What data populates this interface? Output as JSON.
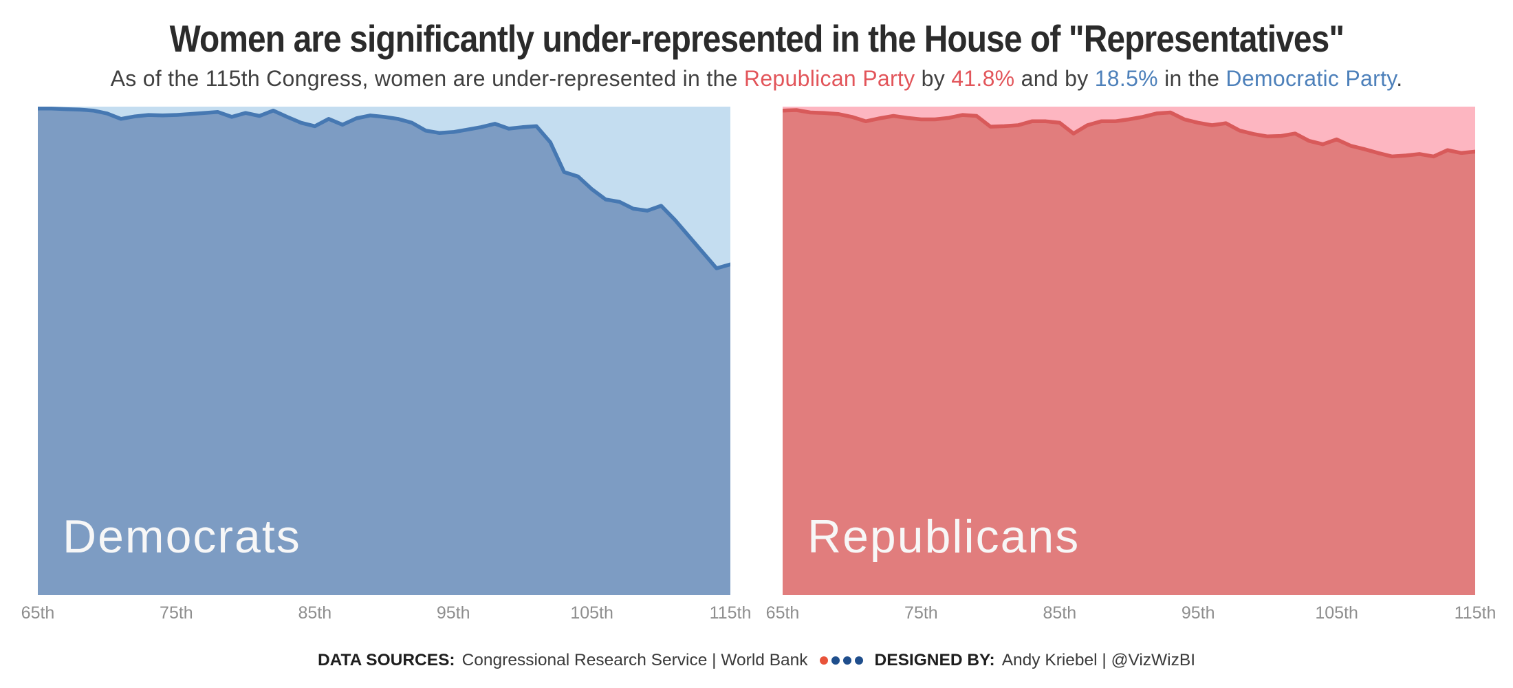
{
  "header": {
    "title": "Women are significantly under-represented in the House of \"Representatives\"",
    "subtitle_parts": {
      "lead": "As of the 115th Congress, women are under-represented in the ",
      "republican_party": "Republican Party",
      "by": " by ",
      "republican_gap_pct": "41.8%",
      "and_by": " and by ",
      "democratic_gap_pct": "18.5%",
      "in_the": " in the ",
      "democratic_party": "Democratic Party",
      "period": "."
    },
    "accent_colors": {
      "republican_red": "#e2555a",
      "democratic_blue": "#4d80ba"
    }
  },
  "chart_data": [
    {
      "type": "area",
      "title": "Democrats",
      "value_meaning": "share of House Democrats who are men (%); light background above the line is the women's share",
      "x_congress_range": [
        65,
        115
      ],
      "x_tick_labels": [
        "65th",
        "75th",
        "85th",
        "95th",
        "105th",
        "115th"
      ],
      "ylim": [
        0,
        100
      ],
      "grid": false,
      "legend": "none",
      "values": [
        99.6,
        99.6,
        99.5,
        99.4,
        99.2,
        98.6,
        97.5,
        98.0,
        98.3,
        98.2,
        98.3,
        98.5,
        98.7,
        98.9,
        97.9,
        98.7,
        98.1,
        99.2,
        97.9,
        96.7,
        96.0,
        97.5,
        96.3,
        97.6,
        98.2,
        97.9,
        97.5,
        96.7,
        95.1,
        94.6,
        94.8,
        95.3,
        95.8,
        96.5,
        95.5,
        95.8,
        96.0,
        92.7,
        86.6,
        85.7,
        83.1,
        81.0,
        80.5,
        79.1,
        78.7,
        79.7,
        76.8,
        73.5,
        70.2,
        66.9,
        67.7
      ],
      "colors": {
        "background_women": "#c4ddf0",
        "area_men": "#7d9cc3",
        "line": "#4678b2",
        "label_text": "#f7f7f7"
      }
    },
    {
      "type": "area",
      "title": "Republicans",
      "value_meaning": "share of House Republicans who are men (%); light background above the line is the women's share",
      "x_congress_range": [
        65,
        115
      ],
      "x_tick_labels": [
        "65th",
        "75th",
        "85th",
        "95th",
        "105th",
        "115th"
      ],
      "ylim": [
        0,
        100
      ],
      "grid": false,
      "legend": "none",
      "values": [
        99.2,
        99.3,
        98.8,
        98.7,
        98.5,
        97.9,
        97.0,
        97.6,
        98.1,
        97.7,
        97.4,
        97.4,
        97.7,
        98.3,
        98.1,
        95.9,
        96.0,
        96.2,
        97.0,
        97.0,
        96.7,
        94.5,
        96.2,
        97.0,
        97.0,
        97.4,
        97.9,
        98.6,
        98.8,
        97.4,
        96.7,
        96.2,
        96.6,
        95.1,
        94.4,
        93.9,
        94.0,
        94.5,
        93.0,
        92.3,
        93.3,
        92.0,
        91.3,
        90.5,
        89.8,
        90.0,
        90.3,
        89.8,
        91.1,
        90.5,
        90.8
      ],
      "colors": {
        "background_women": "#fdb6c1",
        "area_men": "#e17d7d",
        "line": "#d85a5a",
        "label_text": "#f7f7f7"
      }
    }
  ],
  "footer": {
    "sources_label": "DATA SOURCES:",
    "sources": "Congressional Research Service | World Bank",
    "designed_label": "DESIGNED BY:",
    "designer": "Andy Kriebel | @VizWizBI",
    "dot_colors": [
      "#e8533a",
      "#1f4e8c",
      "#1f4e8c",
      "#1f4e8c"
    ]
  }
}
